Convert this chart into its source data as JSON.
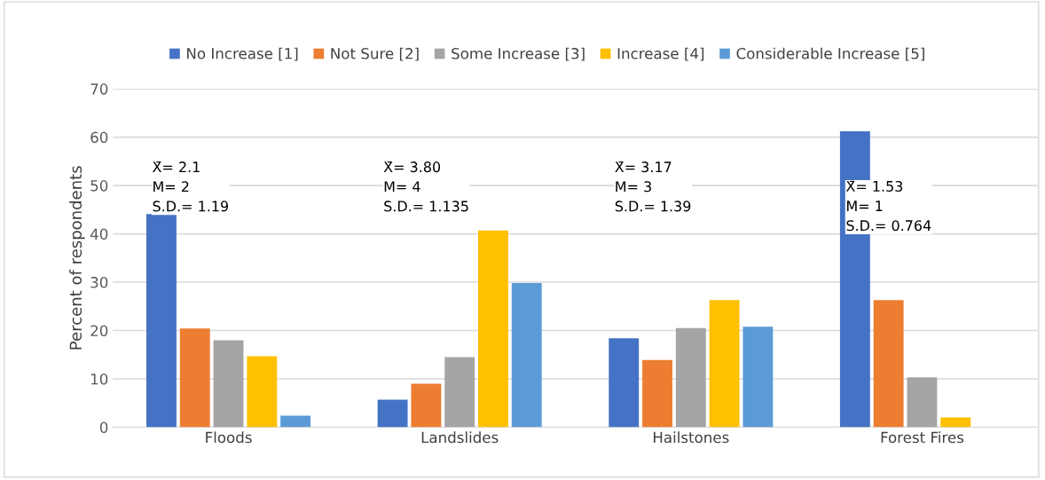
{
  "chart_data": {
    "type": "bar",
    "ylabel": "Percent of respondents",
    "categories": [
      "Floods",
      "Landslides",
      "Hailstones",
      "Forest Fires"
    ],
    "series": [
      {
        "name": "No Increase [1]",
        "color": "#4472c4",
        "values": [
          44.1,
          5.7,
          18.4,
          61.2
        ]
      },
      {
        "name": "Not Sure [2]",
        "color": "#ed7d31",
        "values": [
          20.4,
          9.0,
          13.9,
          26.3
        ]
      },
      {
        "name": "Some Increase [3]",
        "color": "#a5a5a5",
        "values": [
          18.0,
          14.5,
          20.5,
          10.3
        ]
      },
      {
        "name": "Increase [4]",
        "color": "#ffc000",
        "values": [
          14.7,
          40.7,
          26.3,
          2.0
        ]
      },
      {
        "name": "Considerable Increase [5]",
        "color": "#5b9bd5",
        "values": [
          2.4,
          29.8,
          20.8,
          0
        ]
      }
    ],
    "ylim": [
      0,
      70
    ],
    "yticks": [
      0,
      10,
      20,
      30,
      40,
      50,
      60,
      70
    ],
    "grid": "y",
    "legend": "top",
    "annotations": [
      "X̄= 2.1\nM= 2\nS.D.= 1.19",
      "X̄= 3.80\nM= 4\nS.D.= 1.135",
      "X̄= 3.17\nM= 3\nS.D.= 1.39",
      "X̄= 1.53\nM= 1\nS.D.= 0.764"
    ]
  }
}
